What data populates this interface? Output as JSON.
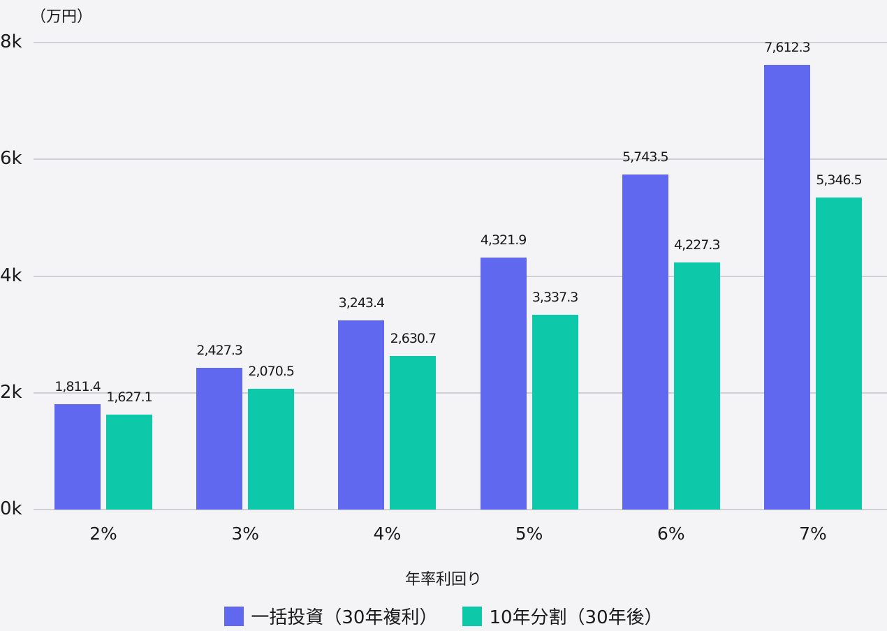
{
  "chart_data": {
    "type": "bar",
    "title": "",
    "unit_label": "（万円）",
    "xlabel": "年率利回り",
    "ylabel": "（万円）",
    "ylim": [
      0,
      8000
    ],
    "yticks": [
      "0k",
      "2k",
      "4k",
      "6k",
      "8k"
    ],
    "grid": true,
    "legend_position": "bottom",
    "categories": [
      "2%",
      "3%",
      "4%",
      "5%",
      "6%",
      "7%"
    ],
    "series": [
      {
        "name": "一括投資（30年複利）",
        "color": "#6068ef",
        "values": [
          1811.4,
          2427.3,
          3243.4,
          4321.9,
          5743.5,
          7612.3
        ],
        "labels": [
          "1,811.4",
          "2,427.3",
          "3,243.4",
          "4,321.9",
          "5,743.5",
          "7,612.3"
        ]
      },
      {
        "name": "10年分割（30年後）",
        "color": "#0ec8aa",
        "values": [
          1627.1,
          2070.5,
          2630.7,
          3337.3,
          4227.3,
          5346.5
        ],
        "labels": [
          "1,627.1",
          "2,070.5",
          "2,630.7",
          "3,337.3",
          "4,227.3",
          "5,346.5"
        ]
      }
    ]
  }
}
